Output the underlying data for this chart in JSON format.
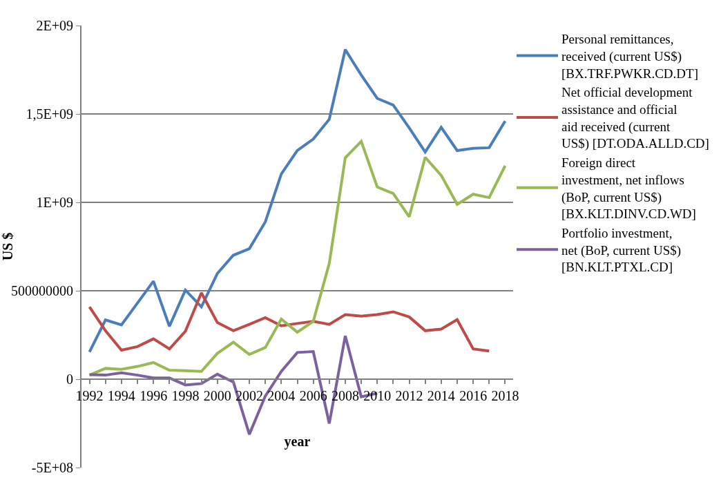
{
  "chart_data": {
    "type": "line",
    "xlabel": "year",
    "ylabel": "US $",
    "x": [
      1992,
      1993,
      1994,
      1995,
      1996,
      1997,
      1998,
      1999,
      2000,
      2001,
      2002,
      2003,
      2004,
      2005,
      2006,
      2007,
      2008,
      2009,
      2010,
      2011,
      2012,
      2013,
      2014,
      2015,
      2016,
      2017,
      2018
    ],
    "series": [
      {
        "name": "Personal remittances, received (current US$) [BX.TRF.PWKR.CD.DT]",
        "color": "#4a7ebb",
        "values": [
          154000000,
          335000000,
          307000000,
          430000000,
          554000000,
          299000000,
          504000000,
          409000000,
          598000000,
          701000000,
          738000000,
          890000000,
          1161000000,
          1293000000,
          1358000000,
          1470000000,
          1864000000,
          1720000000,
          1588000000,
          1550000000,
          1421000000,
          1285000000,
          1424000000,
          1293000000,
          1306000000,
          1309000000,
          1460000000
        ]
      },
      {
        "name": "Net official development assistance and official aid received (current US$) [DT.ODA.ALLD.CD]",
        "color": "#be4b48",
        "values": [
          409000000,
          274000000,
          164000000,
          184000000,
          228000000,
          171000000,
          271000000,
          488000000,
          320000000,
          274000000,
          310000000,
          348000000,
          302000000,
          315000000,
          327000000,
          310000000,
          365000000,
          356000000,
          365000000,
          381000000,
          352000000,
          274000000,
          283000000,
          337000000,
          171000000,
          159000000,
          null
        ]
      },
      {
        "name": "Foreign direct investment, net inflows (BoP, current US$) [BX.KLT.DINV.CD.WD]",
        "color": "#98b954",
        "values": [
          23000000,
          61000000,
          56000000,
          72000000,
          94000000,
          51000000,
          48000000,
          44000000,
          146000000,
          209000000,
          140000000,
          179000000,
          340000000,
          266000000,
          327000000,
          655000000,
          1252000000,
          1345000000,
          1087000000,
          1050000000,
          918000000,
          1255000000,
          1153000000,
          989000000,
          1046000000,
          1027000000,
          1207000000
        ]
      },
      {
        "name": "Portfolio investment, net (BoP, current US$) [BN.KLT.PTXL.CD]",
        "color": "#7d60a0",
        "values": [
          25000000,
          23000000,
          36000000,
          23000000,
          7000000,
          7000000,
          -33000000,
          -25000000,
          28000000,
          -16000000,
          -312000000,
          -95000000,
          44000000,
          151000000,
          156000000,
          -251000000,
          245000000,
          -100000000,
          -79000000,
          null,
          null,
          null,
          null,
          null,
          null,
          null,
          null
        ]
      }
    ],
    "xlim": [
      1991.5,
      2018.5
    ],
    "xticks": [
      1992,
      {
        "value": 1993,
        "label": null
      },
      1994,
      {
        "value": 1995,
        "label": null
      },
      1996,
      {
        "value": 1997,
        "label": null
      },
      1998,
      {
        "value": 1999,
        "label": null
      },
      2000,
      {
        "value": 2001,
        "label": null
      },
      2002,
      {
        "value": 2003,
        "label": null
      },
      2004,
      {
        "value": 2005,
        "label": null
      },
      2006,
      {
        "value": 2007,
        "label": null
      },
      2008,
      {
        "value": 2009,
        "label": null
      },
      2010,
      {
        "value": 2011,
        "label": null
      },
      2012,
      {
        "value": 2013,
        "label": null
      },
      2014,
      {
        "value": 2015,
        "label": null
      },
      2016,
      {
        "value": 2017,
        "label": null
      },
      2018
    ],
    "ylim": [
      -500000000,
      2000000000
    ],
    "yticks": [
      {
        "value": -500000000,
        "label": "-5E+08"
      },
      0,
      {
        "value": 500000000,
        "label": "500000000"
      },
      {
        "value": 1000000000,
        "label": "1E+09"
      },
      {
        "value": 1500000000,
        "label": "1,5E+09"
      },
      {
        "value": 2000000000,
        "label": "2E+09"
      }
    ],
    "grid": "y",
    "legend": "right",
    "marker": "none",
    "line_style": "solid"
  }
}
